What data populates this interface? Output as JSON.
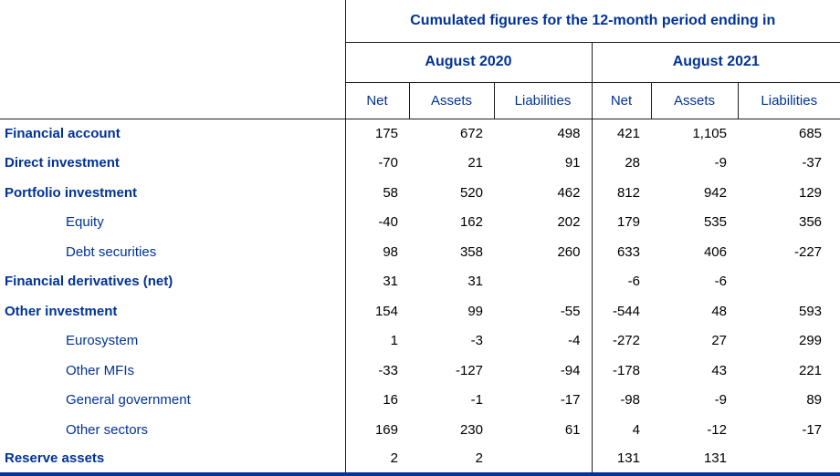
{
  "chart_data": {
    "type": "table",
    "title": "Cumulated figures for the 12-month period ending in",
    "column_groups": [
      "August 2020",
      "August 2021"
    ],
    "columns": [
      "Net",
      "Assets",
      "Liabilities",
      "Net",
      "Assets",
      "Liabilities"
    ],
    "rows": [
      {
        "label": "Financial account",
        "style": "main",
        "values": [
          "175",
          "672",
          "498",
          "421",
          "1,105",
          "685"
        ]
      },
      {
        "label": "Direct investment",
        "style": "main",
        "values": [
          "-70",
          "21",
          "91",
          "28",
          "-9",
          "-37"
        ]
      },
      {
        "label": "Portfolio investment",
        "style": "main",
        "values": [
          "58",
          "520",
          "462",
          "812",
          "942",
          "129"
        ]
      },
      {
        "label": "Equity",
        "style": "sub",
        "values": [
          "-40",
          "162",
          "202",
          "179",
          "535",
          "356"
        ]
      },
      {
        "label": "Debt securities",
        "style": "sub",
        "values": [
          "98",
          "358",
          "260",
          "633",
          "406",
          "-227"
        ]
      },
      {
        "label": "Financial derivatives (net)",
        "style": "main",
        "values": [
          "31",
          "31",
          "",
          "-6",
          "-6",
          ""
        ]
      },
      {
        "label": "Other investment",
        "style": "main",
        "values": [
          "154",
          "99",
          "-55",
          "-544",
          "48",
          "593"
        ]
      },
      {
        "label": "Eurosystem",
        "style": "sub",
        "values": [
          "1",
          "-3",
          "-4",
          "-272",
          "27",
          "299"
        ]
      },
      {
        "label": "Other MFIs",
        "style": "sub",
        "values": [
          "-33",
          "-127",
          "-94",
          "-178",
          "43",
          "221"
        ]
      },
      {
        "label": "General government",
        "style": "sub",
        "values": [
          "16",
          "-1",
          "-17",
          "-98",
          "-9",
          "89"
        ]
      },
      {
        "label": "Other sectors",
        "style": "sub",
        "values": [
          "169",
          "230",
          "61",
          "4",
          "-12",
          "-17"
        ]
      },
      {
        "label": "Reserve assets",
        "style": "main",
        "values": [
          "2",
          "2",
          "",
          "131",
          "131",
          ""
        ]
      }
    ]
  },
  "colors": {
    "text_blue": "#003299",
    "number_text": "#000000",
    "thin_rule": "#1d1d1d",
    "bottom_rule": "#003299"
  }
}
